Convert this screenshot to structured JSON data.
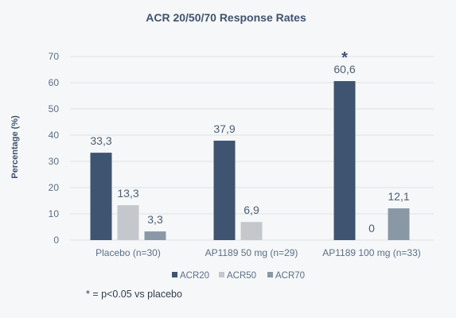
{
  "chart_data": {
    "type": "bar",
    "title": "ACR 20/50/70 Response Rates",
    "ylabel": "Percentage (%)",
    "xlabel": "",
    "ylim": [
      0,
      70
    ],
    "yticks": [
      0,
      10,
      20,
      30,
      40,
      50,
      60,
      70
    ],
    "grid": true,
    "legend_position": "bottom",
    "categories": [
      "Placebo (n=30)",
      "AP1189 50 mg (n=29)",
      "AP1189 100 mg (n=33)"
    ],
    "series": [
      {
        "name": "ACR20",
        "color": "#3f5470",
        "values": [
          33.3,
          37.9,
          60.6
        ],
        "labels": [
          "33,3",
          "37,9",
          "60,6"
        ]
      },
      {
        "name": "ACR50",
        "color": "#c4c8cc",
        "values": [
          13.3,
          6.9,
          0
        ],
        "labels": [
          "13,3",
          "6,9",
          "0"
        ]
      },
      {
        "name": "ACR70",
        "color": "#8a98a6",
        "values": [
          3.3,
          0,
          12.1
        ],
        "labels": [
          "3,3",
          "",
          "12,1"
        ]
      }
    ],
    "annotations": [
      {
        "text": "*",
        "category": "AP1189 100 mg (n=33)",
        "series": "ACR20"
      }
    ],
    "footnote": "* = p<0.05 vs placebo"
  }
}
